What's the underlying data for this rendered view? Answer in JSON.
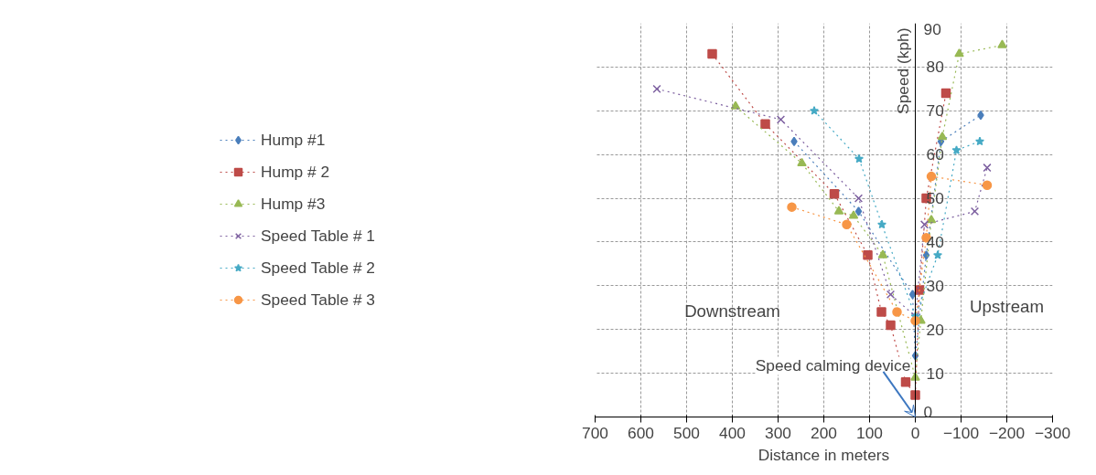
{
  "chart_data": {
    "type": "line",
    "xlabel": "Distance in meters",
    "ylabel": "Speed (kph)",
    "xlim": [
      700,
      -300
    ],
    "xticks": [
      700,
      600,
      500,
      400,
      300,
      200,
      100,
      0,
      -100,
      -200,
      -300
    ],
    "ylim": [
      0,
      90
    ],
    "yticks": [
      0,
      10,
      20,
      30,
      40,
      50,
      60,
      70,
      80,
      90
    ],
    "grid": true,
    "legend": "left",
    "line_style": "dotted",
    "annotations": [
      "Downstream",
      "Upstream",
      "Speed calming device"
    ],
    "series": [
      {
        "name": "Hump #1",
        "color": "#4a7ebb",
        "marker": "diamond",
        "x": [
          265,
          124,
          6,
          0,
          -24,
          -56,
          -143
        ],
        "values": [
          63,
          47,
          28,
          14,
          37,
          63,
          69
        ]
      },
      {
        "name": "Hump # 2",
        "color": "#be4b48",
        "marker": "square",
        "x": [
          444,
          328,
          177,
          104,
          74,
          54,
          21,
          0,
          -9,
          -24,
          -67
        ],
        "values": [
          83,
          67,
          51,
          37,
          24,
          21,
          8,
          5,
          29,
          50,
          74
        ]
      },
      {
        "name": "Hump #3",
        "color": "#98b954",
        "marker": "triangle",
        "x": [
          393,
          248,
          167,
          135,
          71,
          0,
          -12,
          -35,
          -59,
          -96,
          -190
        ],
        "values": [
          71,
          58,
          47,
          46,
          37,
          9,
          22,
          45,
          64,
          83,
          85
        ]
      },
      {
        "name": "Speed Table # 1",
        "color": "#7d60a0",
        "marker": "cross",
        "x": [
          565,
          294,
          124,
          54,
          0,
          -20,
          -130,
          -157
        ],
        "values": [
          75,
          68,
          50,
          28,
          23,
          44,
          47,
          57
        ]
      },
      {
        "name": "Speed Table # 2",
        "color": "#46aac5",
        "marker": "star",
        "x": [
          221,
          123,
          73,
          0,
          -49,
          -90,
          -141
        ],
        "values": [
          70,
          59,
          44,
          23,
          37,
          61,
          63
        ]
      },
      {
        "name": "Speed Table # 3",
        "color": "#f79646",
        "marker": "circle",
        "x": [
          270,
          150,
          40,
          0,
          -24,
          -35,
          -157
        ],
        "values": [
          48,
          44,
          24,
          22,
          41,
          55,
          53
        ]
      }
    ]
  }
}
